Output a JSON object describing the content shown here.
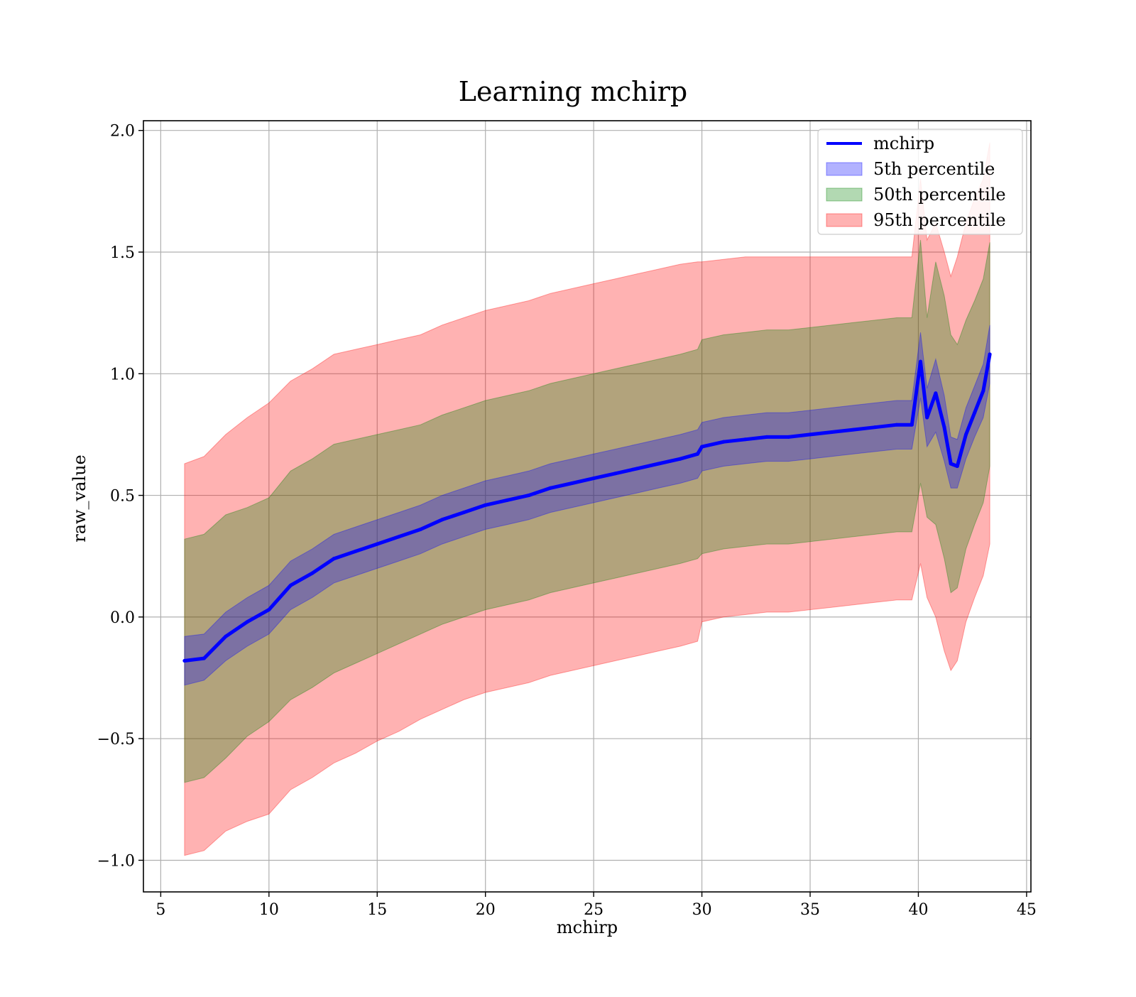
{
  "chart_data": {
    "type": "line",
    "title": "Learning mchirp",
    "xlabel": "mchirp",
    "ylabel": "raw_value",
    "xlim": [
      4.2,
      45.2
    ],
    "ylim": [
      -1.13,
      2.04
    ],
    "grid": true,
    "legend_position": "top-right",
    "x_ticks": [
      {
        "value": 5,
        "label": "5"
      },
      {
        "value": 10,
        "label": "10"
      },
      {
        "value": 15,
        "label": "15"
      },
      {
        "value": 20,
        "label": "20"
      },
      {
        "value": 25,
        "label": "25"
      },
      {
        "value": 30,
        "label": "30"
      },
      {
        "value": 35,
        "label": "35"
      },
      {
        "value": 40,
        "label": "40"
      },
      {
        "value": 45,
        "label": "45"
      }
    ],
    "y_ticks": [
      {
        "value": -1.0,
        "label": "−1.0"
      },
      {
        "value": -0.5,
        "label": "−0.5"
      },
      {
        "value": 0.0,
        "label": "0.0"
      },
      {
        "value": 0.5,
        "label": "0.5"
      },
      {
        "value": 1.0,
        "label": "1.0"
      },
      {
        "value": 1.5,
        "label": "1.5"
      },
      {
        "value": 2.0,
        "label": "2.0"
      }
    ],
    "x": [
      6.1,
      7,
      8,
      9,
      10,
      11,
      12,
      13,
      14,
      15,
      16,
      17,
      18,
      19,
      20,
      21,
      22,
      23,
      24,
      25,
      26,
      27,
      28,
      29,
      29.8,
      30,
      31,
      32,
      33,
      34,
      35,
      36,
      37,
      38,
      39,
      39.7,
      40.1,
      40.4,
      40.8,
      41.2,
      41.5,
      41.8,
      42.2,
      42.6,
      43.0,
      43.3
    ],
    "series": [
      {
        "name": "mchirp",
        "kind": "line",
        "color": "#0000ff",
        "values": [
          -0.18,
          -0.17,
          -0.08,
          -0.02,
          0.03,
          0.13,
          0.18,
          0.24,
          0.27,
          0.3,
          0.33,
          0.36,
          0.4,
          0.43,
          0.46,
          0.48,
          0.5,
          0.53,
          0.55,
          0.57,
          0.59,
          0.61,
          0.63,
          0.65,
          0.67,
          0.7,
          0.72,
          0.73,
          0.74,
          0.74,
          0.75,
          0.76,
          0.77,
          0.78,
          0.79,
          0.79,
          1.05,
          0.82,
          0.92,
          0.78,
          0.63,
          0.62,
          0.75,
          0.84,
          0.93,
          1.08
        ]
      },
      {
        "name": "5th percentile",
        "kind": "band",
        "color": "#0000ff",
        "opacity": 0.3,
        "lower": [
          -0.28,
          -0.26,
          -0.18,
          -0.12,
          -0.07,
          0.03,
          0.08,
          0.14,
          0.17,
          0.2,
          0.23,
          0.26,
          0.3,
          0.33,
          0.36,
          0.38,
          0.4,
          0.43,
          0.45,
          0.47,
          0.49,
          0.51,
          0.53,
          0.55,
          0.57,
          0.6,
          0.62,
          0.63,
          0.64,
          0.64,
          0.65,
          0.66,
          0.67,
          0.68,
          0.69,
          0.69,
          0.9,
          0.7,
          0.76,
          0.64,
          0.53,
          0.53,
          0.65,
          0.74,
          0.82,
          0.96
        ],
        "upper": [
          -0.08,
          -0.07,
          0.02,
          0.08,
          0.13,
          0.23,
          0.28,
          0.34,
          0.37,
          0.4,
          0.43,
          0.46,
          0.5,
          0.53,
          0.56,
          0.58,
          0.6,
          0.63,
          0.65,
          0.67,
          0.69,
          0.71,
          0.73,
          0.75,
          0.77,
          0.8,
          0.82,
          0.83,
          0.84,
          0.84,
          0.85,
          0.86,
          0.87,
          0.88,
          0.89,
          0.89,
          1.17,
          0.94,
          1.06,
          0.91,
          0.74,
          0.73,
          0.86,
          0.95,
          1.04,
          1.2
        ]
      },
      {
        "name": "50th percentile",
        "kind": "band",
        "color": "#008000",
        "opacity": 0.3,
        "lower": [
          -0.68,
          -0.66,
          -0.58,
          -0.49,
          -0.43,
          -0.34,
          -0.29,
          -0.23,
          -0.19,
          -0.15,
          -0.11,
          -0.07,
          -0.03,
          0.0,
          0.03,
          0.05,
          0.07,
          0.1,
          0.12,
          0.14,
          0.16,
          0.18,
          0.2,
          0.22,
          0.24,
          0.26,
          0.28,
          0.29,
          0.3,
          0.3,
          0.31,
          0.32,
          0.33,
          0.34,
          0.35,
          0.35,
          0.55,
          0.41,
          0.38,
          0.24,
          0.1,
          0.12,
          0.28,
          0.38,
          0.47,
          0.62
        ],
        "upper": [
          0.32,
          0.34,
          0.42,
          0.45,
          0.49,
          0.6,
          0.65,
          0.71,
          0.73,
          0.75,
          0.77,
          0.79,
          0.83,
          0.86,
          0.89,
          0.91,
          0.93,
          0.96,
          0.98,
          1.0,
          1.02,
          1.04,
          1.06,
          1.08,
          1.1,
          1.14,
          1.16,
          1.17,
          1.18,
          1.18,
          1.19,
          1.2,
          1.21,
          1.22,
          1.23,
          1.23,
          1.55,
          1.23,
          1.46,
          1.32,
          1.16,
          1.12,
          1.22,
          1.3,
          1.39,
          1.54
        ]
      },
      {
        "name": "95th percentile",
        "kind": "band",
        "color": "#ff0000",
        "opacity": 0.3,
        "lower": [
          -0.98,
          -0.96,
          -0.88,
          -0.84,
          -0.81,
          -0.71,
          -0.66,
          -0.6,
          -0.56,
          -0.51,
          -0.47,
          -0.42,
          -0.38,
          -0.34,
          -0.31,
          -0.29,
          -0.27,
          -0.24,
          -0.22,
          -0.2,
          -0.18,
          -0.16,
          -0.14,
          -0.12,
          -0.1,
          -0.02,
          0.0,
          0.01,
          0.02,
          0.02,
          0.03,
          0.04,
          0.05,
          0.06,
          0.07,
          0.07,
          0.22,
          0.08,
          0.0,
          -0.14,
          -0.22,
          -0.18,
          -0.02,
          0.08,
          0.17,
          0.3
        ]
      },
      {
        "name": "95th percentile upper",
        "kind": "band-upper",
        "values": [
          0.63,
          0.66,
          0.75,
          0.82,
          0.88,
          0.97,
          1.02,
          1.08,
          1.1,
          1.12,
          1.14,
          1.16,
          1.2,
          1.23,
          1.26,
          1.28,
          1.3,
          1.33,
          1.35,
          1.37,
          1.39,
          1.41,
          1.43,
          1.45,
          1.46,
          1.46,
          1.47,
          1.48,
          1.48,
          1.48,
          1.48,
          1.48,
          1.48,
          1.48,
          1.48,
          1.48,
          1.8,
          1.55,
          1.62,
          1.5,
          1.4,
          1.48,
          1.62,
          1.72,
          1.8,
          1.95
        ]
      }
    ],
    "legend": [
      {
        "label": "mchirp",
        "kind": "line",
        "color": "#0000ff"
      },
      {
        "label": "5th percentile",
        "kind": "patch",
        "color": "#0000ff"
      },
      {
        "label": "50th percentile",
        "kind": "patch",
        "color": "#008000"
      },
      {
        "label": "95th percentile",
        "kind": "patch",
        "color": "#ff0000"
      }
    ]
  }
}
